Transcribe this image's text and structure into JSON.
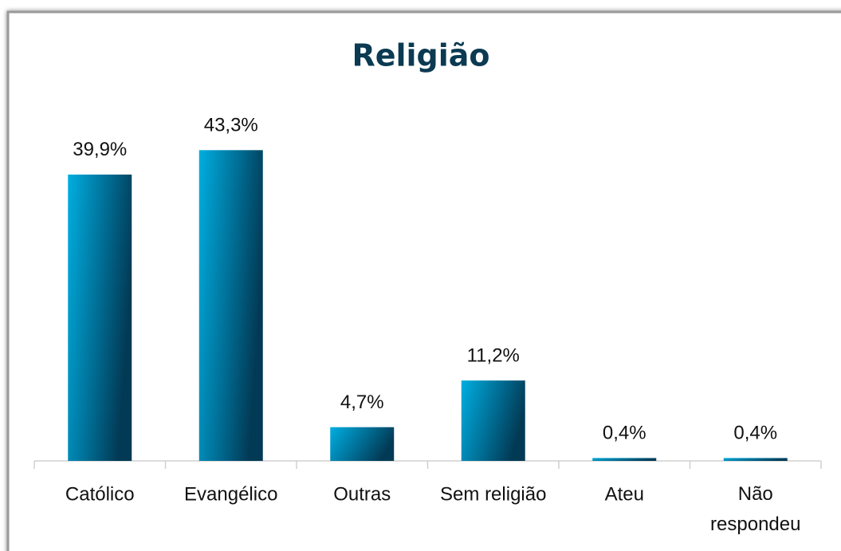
{
  "chart_data": {
    "type": "bar",
    "title": "Religião",
    "categories": [
      "Católico",
      "Evangélico",
      "Outras",
      "Sem religião",
      "Ateu",
      "Não respondeu"
    ],
    "values": [
      39.9,
      43.3,
      4.7,
      11.2,
      0.4,
      0.4
    ],
    "value_labels": [
      "39,9%",
      "43,3%",
      "4,7%",
      "11,2%",
      "0,4%",
      "0,4%"
    ],
    "color": "#0080aa",
    "ylim": [
      0,
      45
    ]
  }
}
